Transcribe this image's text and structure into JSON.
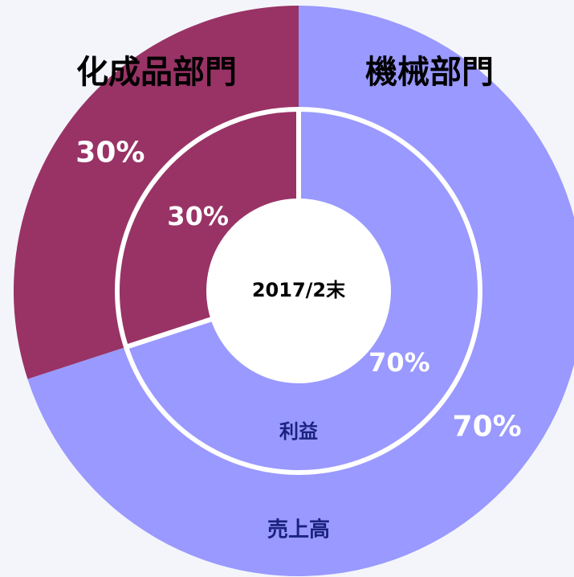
{
  "chart_data": {
    "type": "donut",
    "categories": [
      "機械部門",
      "化成品部門"
    ],
    "colors": [
      "#9999ff",
      "#993366"
    ],
    "series": [
      {
        "name": "売上高",
        "values": [
          70,
          30
        ],
        "value_labels": [
          "70%",
          "30%"
        ]
      },
      {
        "name": "利益",
        "values": [
          70,
          30
        ],
        "value_labels": [
          "70%",
          "30%"
        ]
      }
    ],
    "center_label": "2017/2末"
  }
}
